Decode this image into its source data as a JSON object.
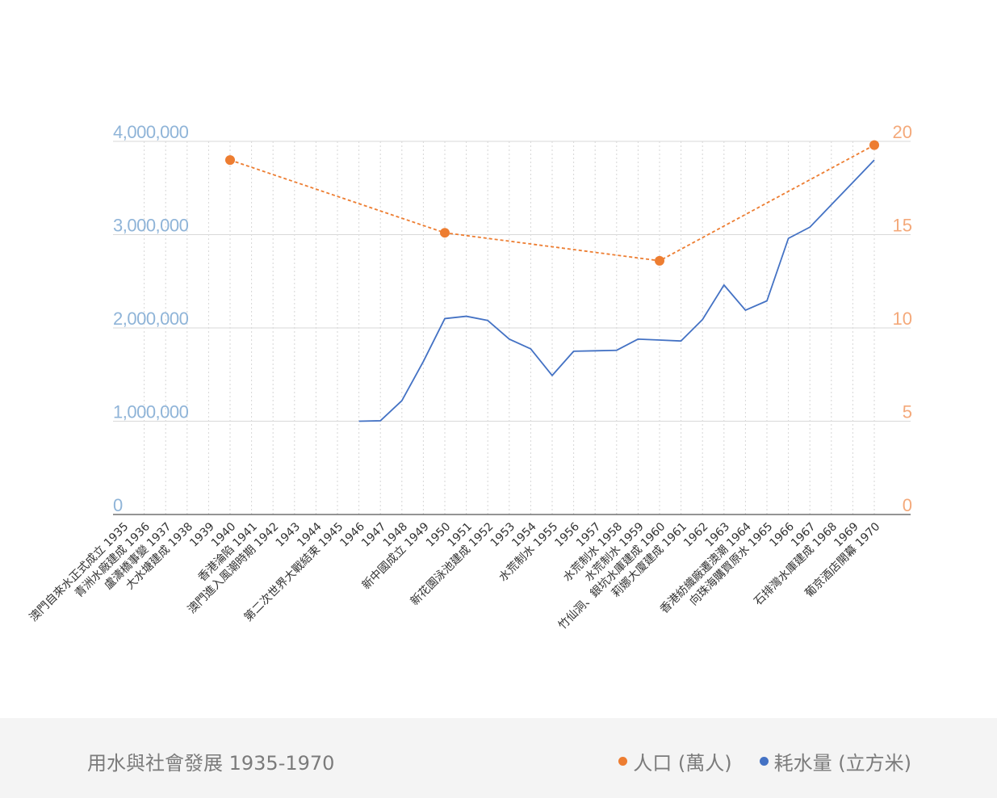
{
  "chart_data": {
    "type": "line",
    "categories": [
      "1935",
      "1936",
      "1937",
      "1938",
      "1939",
      "1940",
      "1941",
      "1942",
      "1943",
      "1944",
      "1945",
      "1946",
      "1947",
      "1948",
      "1949",
      "1950",
      "1951",
      "1952",
      "1953",
      "1954",
      "1955",
      "1956",
      "1957",
      "1958",
      "1959",
      "1960",
      "1961",
      "1962",
      "1963",
      "1964",
      "1965",
      "1966",
      "1967",
      "1968",
      "1969",
      "1970"
    ],
    "events": [
      {
        "year": "1935",
        "label": "澳門自來水正式成立"
      },
      {
        "year": "1936",
        "label": "青洲水廠建成"
      },
      {
        "year": "1937",
        "label": "盧濤橋事變"
      },
      {
        "year": "1938",
        "label": "大水塘建成"
      },
      {
        "year": "1941",
        "label": "香港淪陷"
      },
      {
        "year": "1942",
        "label": "澳門進入風潮時期"
      },
      {
        "year": "1945",
        "label": "第二次世界大戰結束"
      },
      {
        "year": "1949",
        "label": "新中國成立"
      },
      {
        "year": "1952",
        "label": "新花園泳池建成"
      },
      {
        "year": "1955",
        "label": "水荒制水"
      },
      {
        "year": "1958",
        "label": "水荒制水"
      },
      {
        "year": "1959",
        "label": "水荒制水"
      },
      {
        "year": "1960",
        "label": "竹仙洞、銀坑水庫建成"
      },
      {
        "year": "1961",
        "label": "莉娜大廈建成"
      },
      {
        "year": "1964",
        "label": "香港紡織廠遷澳潮"
      },
      {
        "year": "1965",
        "label": "向珠海購買原水"
      },
      {
        "year": "1968",
        "label": "石排灣水庫建成"
      },
      {
        "year": "1970",
        "label": "葡京酒店開幕"
      }
    ],
    "series": [
      {
        "name": "人口 (萬人)",
        "axis": "right",
        "color": "#ed7d31",
        "style": "dashed",
        "points": [
          {
            "x": "1940",
            "y": 19.0
          },
          {
            "x": "1950",
            "y": 15.1
          },
          {
            "x": "1960",
            "y": 13.6
          },
          {
            "x": "1970",
            "y": 19.8
          }
        ]
      },
      {
        "name": "耗水量 (立方米)",
        "axis": "left",
        "color": "#4472c4",
        "style": "solid",
        "points": [
          {
            "x": "1946",
            "y": 1000000
          },
          {
            "x": "1947",
            "y": 1005000
          },
          {
            "x": "1948",
            "y": 1220000
          },
          {
            "x": "1949",
            "y": 1640000
          },
          {
            "x": "1950",
            "y": 2100000
          },
          {
            "x": "1951",
            "y": 2125000
          },
          {
            "x": "1952",
            "y": 2080000
          },
          {
            "x": "1953",
            "y": 1880000
          },
          {
            "x": "1954",
            "y": 1775000
          },
          {
            "x": "1955",
            "y": 1490000
          },
          {
            "x": "1956",
            "y": 1750000
          },
          {
            "x": "1957",
            "y": 1755000
          },
          {
            "x": "1958",
            "y": 1760000
          },
          {
            "x": "1959",
            "y": 1880000
          },
          {
            "x": "1960",
            "y": 1870000
          },
          {
            "x": "1961",
            "y": 1860000
          },
          {
            "x": "1962",
            "y": 2090000
          },
          {
            "x": "1963",
            "y": 2460000
          },
          {
            "x": "1964",
            "y": 2190000
          },
          {
            "x": "1965",
            "y": 2290000
          },
          {
            "x": "1966",
            "y": 2960000
          },
          {
            "x": "1967",
            "y": 3080000
          },
          {
            "x": "1968",
            "y": 3320000
          },
          {
            "x": "1969",
            "y": 3560000
          },
          {
            "x": "1970",
            "y": 3800000
          }
        ]
      }
    ],
    "y_left": {
      "range": [
        0,
        4000000
      ],
      "ticks": [
        0,
        1000000,
        2000000,
        3000000,
        4000000
      ],
      "tick_labels": [
        "0",
        "1,000,000",
        "2,000,000",
        "3,000,000",
        "4,000,000"
      ],
      "color": "#8fb4d8"
    },
    "y_right": {
      "range": [
        0,
        20
      ],
      "ticks": [
        0,
        5,
        10,
        15,
        20
      ],
      "tick_labels": [
        "0",
        "5",
        "10",
        "15",
        "20"
      ],
      "color": "#f4a97a"
    },
    "grid": true
  },
  "footer": {
    "title": "用水與社會發展  1935-1970"
  },
  "legend": [
    {
      "label": "人口 (萬人)",
      "color": "#ed7d31"
    },
    {
      "label": "耗水量 (立方米)",
      "color": "#4472c4"
    }
  ]
}
